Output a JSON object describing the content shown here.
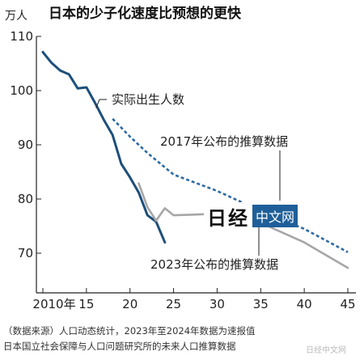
{
  "chart_data": {
    "type": "line",
    "title": "日本的少子化速度比预想的更快",
    "unit_label": "万人",
    "xlim": [
      2010,
      2045
    ],
    "ylim": [
      65,
      110
    ],
    "x_ticks": [
      {
        "value": 2010,
        "label": "2010年"
      },
      {
        "value": 2015,
        "label": "15"
      },
      {
        "value": 2020,
        "label": "20"
      },
      {
        "value": 2025,
        "label": "25"
      },
      {
        "value": 2030,
        "label": "30"
      },
      {
        "value": 2035,
        "label": "35"
      },
      {
        "value": 2040,
        "label": "40"
      },
      {
        "value": 2045,
        "label": "45"
      }
    ],
    "y_ticks": [
      70,
      80,
      90,
      100,
      110
    ],
    "series": [
      {
        "name": "实际出生人数",
        "color": "#1d4f7a",
        "style": "solid",
        "x": [
          2010,
          2011,
          2012,
          2013,
          2014,
          2015,
          2016,
          2017,
          2018,
          2019,
          2020,
          2021,
          2022,
          2023,
          2024
        ],
        "y": [
          107.1,
          105.1,
          103.7,
          103.0,
          100.4,
          100.6,
          97.7,
          94.6,
          91.8,
          86.5,
          84.0,
          81.2,
          77.0,
          75.8,
          72.0
        ]
      },
      {
        "name": "2017年公布的推算数据",
        "color": "#2e6aa3",
        "style": "dashed",
        "x": [
          2018,
          2020,
          2022,
          2025,
          2030,
          2035,
          2040,
          2045
        ],
        "y": [
          94.8,
          91.5,
          88.5,
          84.5,
          81.5,
          77.8,
          74.5,
          70.2
        ]
      },
      {
        "name": "2023年公布的推算数据",
        "color": "#a6a6a6",
        "style": "solid",
        "x": [
          2021,
          2022,
          2023,
          2024,
          2025,
          2027,
          2030,
          2035,
          2040,
          2045
        ],
        "y": [
          82.9,
          78.5,
          76.0,
          78.3,
          77.0,
          77.1,
          77.3,
          75.6,
          72.0,
          67.3
        ]
      }
    ],
    "annotations": [
      {
        "text": "实际出生人数",
        "series": 0
      },
      {
        "text": "2017年公布的推算数据",
        "series": 1
      },
      {
        "text": "2023年公布的推算数据",
        "series": 2
      }
    ]
  },
  "source_note": {
    "line1": "（数据来源）人口动态统计，2023年至2024年数据为速报值",
    "line2": "日本国立社会保障与人口问题研究所的未来人口推算数据"
  },
  "watermark": {
    "logo": "日经",
    "box": "中文网",
    "corner": "日经中文网"
  }
}
